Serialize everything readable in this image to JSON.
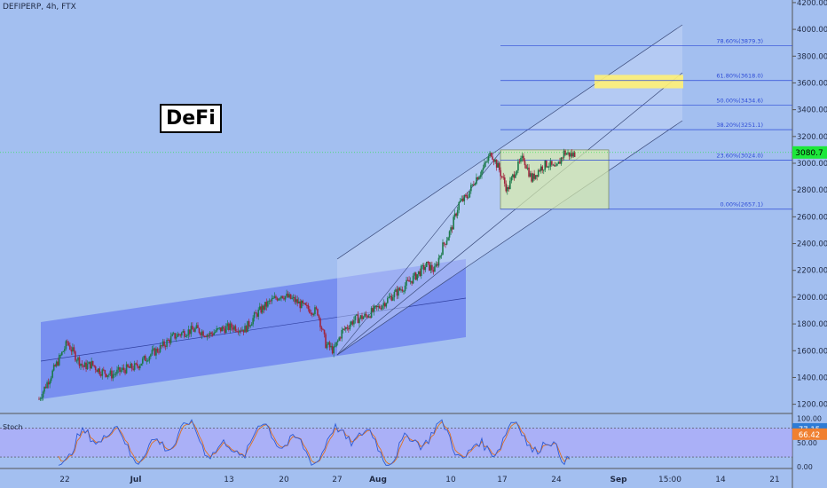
{
  "header": {
    "symbol_line": "DEFIPERP, 4h, FTX"
  },
  "label_box": {
    "text": "DeFi"
  },
  "indicator": {
    "name": "Stoch",
    "k_label": "77.15",
    "d_label": "66.42"
  },
  "colors": {
    "bg": "#a3bff0",
    "up": "#1b7a4a",
    "down": "#a0243c",
    "channel1": "#6a7ff0",
    "channel2": "#c9d8f7",
    "range_box": "#d8edaa",
    "target": "#fff176",
    "last_price_bg": "#1ce83a"
  },
  "chart_data": {
    "type": "candlestick",
    "symbol": "DEFIPERP",
    "timeframe": "4h",
    "exchange": "FTX",
    "last_price": 3080.7,
    "ylim": [
      1100,
      4250
    ],
    "yticks": [
      1200,
      1400,
      1600,
      1800,
      2000,
      2200,
      2400,
      2600,
      2800,
      3000,
      3200,
      3400,
      3600,
      3800,
      4000,
      4200
    ],
    "xticks": [
      "22",
      "Jul",
      "13",
      "20",
      "27",
      "Aug",
      "10",
      "17",
      "24",
      "Sep",
      "15:00",
      "14",
      "21"
    ],
    "price_path": [
      [
        0,
        1240
      ],
      [
        4,
        1480
      ],
      [
        7,
        1660
      ],
      [
        9,
        1560
      ],
      [
        11,
        1480
      ],
      [
        13,
        1500
      ],
      [
        15,
        1450
      ],
      [
        18,
        1420
      ],
      [
        21,
        1460
      ],
      [
        24,
        1480
      ],
      [
        27,
        1560
      ],
      [
        30,
        1620
      ],
      [
        33,
        1700
      ],
      [
        36,
        1740
      ],
      [
        39,
        1760
      ],
      [
        42,
        1720
      ],
      [
        45,
        1760
      ],
      [
        48,
        1780
      ],
      [
        51,
        1760
      ],
      [
        54,
        1880
      ],
      [
        57,
        1960
      ],
      [
        60,
        2020
      ],
      [
        63,
        1980
      ],
      [
        66,
        1920
      ],
      [
        69,
        1890
      ],
      [
        71,
        1650
      ],
      [
        73,
        1600
      ],
      [
        75,
        1740
      ],
      [
        78,
        1830
      ],
      [
        81,
        1860
      ],
      [
        84,
        1920
      ],
      [
        87,
        2000
      ],
      [
        90,
        2070
      ],
      [
        93,
        2150
      ],
      [
        96,
        2240
      ],
      [
        98,
        2200
      ],
      [
        100,
        2380
      ],
      [
        102,
        2500
      ],
      [
        104,
        2700
      ],
      [
        106,
        2750
      ],
      [
        108,
        2880
      ],
      [
        110,
        2960
      ],
      [
        112,
        3080
      ],
      [
        114,
        2950
      ],
      [
        116,
        2800
      ],
      [
        118,
        2950
      ],
      [
        120,
        3040
      ],
      [
        122,
        2880
      ],
      [
        124,
        2960
      ],
      [
        126,
        3000
      ],
      [
        128,
        2950
      ],
      [
        130,
        3080
      ],
      [
        132,
        3060
      ],
      [
        133,
        3080.7
      ]
    ],
    "fibonacci": [
      {
        "label": "0.00%(2657.1)",
        "value": 2657.1
      },
      {
        "label": "23.60%(3024.0)",
        "value": 3024.0
      },
      {
        "label": "38.20%(3251.1)",
        "value": 3251.1
      },
      {
        "label": "50.00%(3434.6)",
        "value": 3434.6
      },
      {
        "label": "61.80%(3618.0)",
        "value": 3618.0
      },
      {
        "label": "78.60%(3879.3)",
        "value": 3879.3
      },
      {
        "label": "",
        "value": 4234.1
      }
    ],
    "range_box": {
      "low": 2657.1,
      "high": 3100
    },
    "target_zone": {
      "low": 3560,
      "high": 3660
    },
    "stoch": {
      "ylim": [
        0,
        100
      ],
      "upper": 80,
      "lower": 20,
      "yticks": [
        "100.00",
        "50.00",
        "0.00"
      ],
      "k": 77.15,
      "d": 66.42
    }
  }
}
